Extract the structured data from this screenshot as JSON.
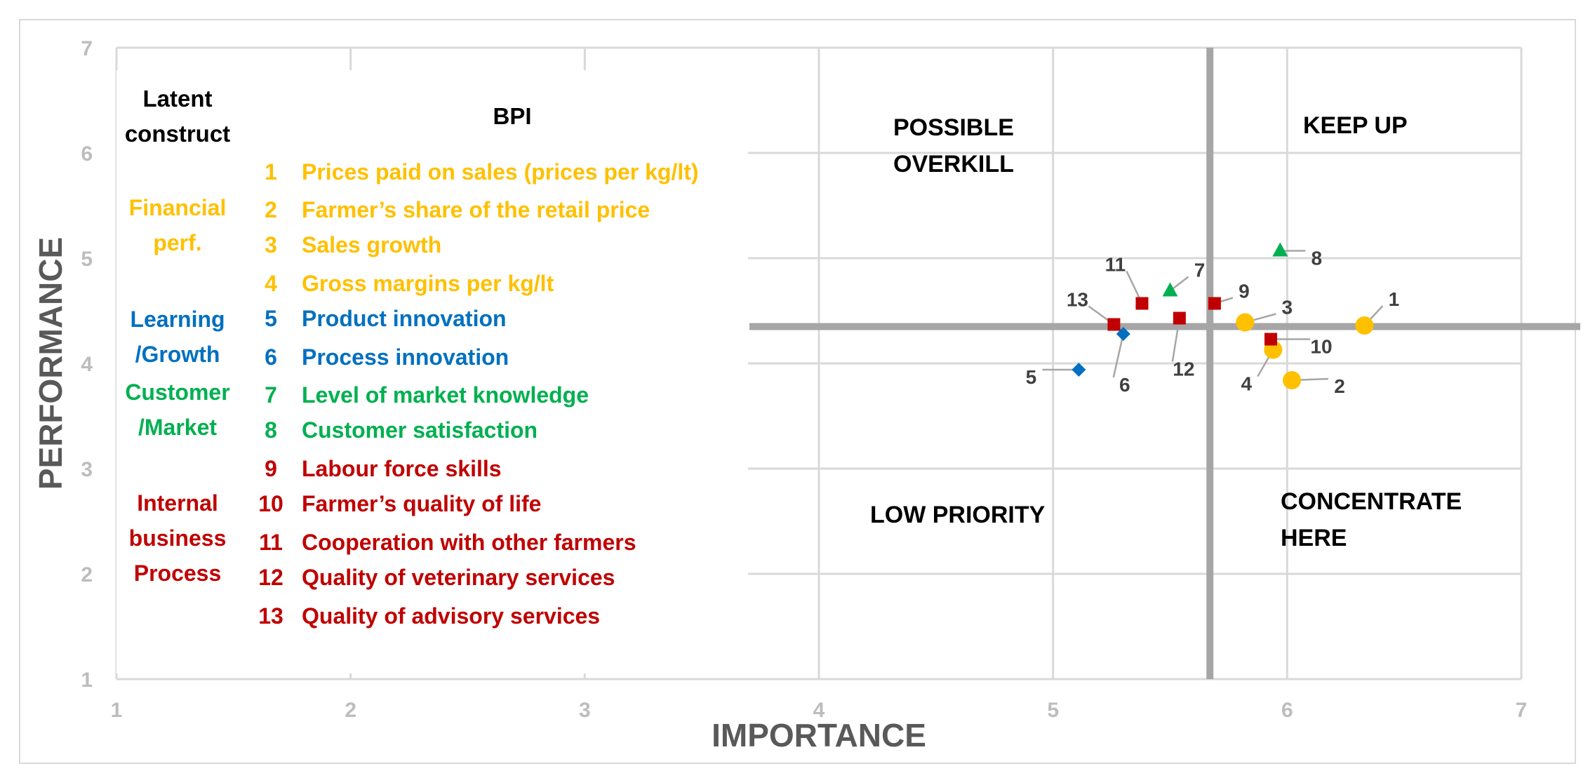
{
  "chart_data": {
    "type": "scatter",
    "title": "",
    "xlabel": "IMPORTANCE",
    "ylabel": "PERFORMANCE",
    "xlim": [
      1,
      7
    ],
    "ylim": [
      1,
      7
    ],
    "xticks": [
      "1",
      "2",
      "3",
      "4",
      "5",
      "6",
      "7"
    ],
    "yticks": [
      "1",
      "2",
      "3",
      "4",
      "5",
      "6",
      "7"
    ],
    "grid": true,
    "crosshair": {
      "x": 5.67,
      "y": 4.35
    },
    "quadrants": {
      "possible_overkill": [
        "POSSIBLE",
        "OVERKILL"
      ],
      "keep_up": "KEEP UP",
      "low_priority": "LOW  PRIORITY",
      "concentrate_here": [
        "CONCENTRATE",
        "HERE"
      ]
    },
    "legend": {
      "construct_header": [
        "Latent",
        "construct"
      ],
      "bpi_header": "BPI",
      "groups": [
        {
          "id": "financial",
          "color": "#ffc000",
          "marker": "circle",
          "name_lines": [
            "Financial",
            "perf."
          ]
        },
        {
          "id": "learning",
          "color": "#0070c0",
          "marker": "diamond",
          "name_lines": [
            "Learning",
            "/Growth"
          ]
        },
        {
          "id": "customer",
          "color": "#00b050",
          "marker": "triangle",
          "name_lines": [
            "Customer",
            "/Market"
          ]
        },
        {
          "id": "internal",
          "color": "#c00000",
          "marker": "square",
          "name_lines": [
            "Internal",
            "business",
            "Process"
          ]
        }
      ],
      "items": [
        {
          "num": "1",
          "label": "Prices paid on sales (prices per kg/lt)",
          "group": "financial"
        },
        {
          "num": "2",
          "label": "Farmer’s share of the retail price",
          "group": "financial"
        },
        {
          "num": "3",
          "label": "Sales growth",
          "group": "financial"
        },
        {
          "num": "4",
          "label": "Gross margins per kg/lt",
          "group": "financial"
        },
        {
          "num": "5",
          "label": "Product innovation",
          "group": "learning"
        },
        {
          "num": "6",
          "label": "Process innovation",
          "group": "learning"
        },
        {
          "num": "7",
          "label": "Level of market knowledge",
          "group": "customer"
        },
        {
          "num": "8",
          "label": "Customer satisfaction",
          "group": "customer"
        },
        {
          "num": "9",
          "label": "Labour force skills",
          "group": "internal"
        },
        {
          "num": "10",
          "label": "Farmer’s quality of life",
          "group": "internal"
        },
        {
          "num": "11",
          "label": "Cooperation with other farmers",
          "group": "internal"
        },
        {
          "num": "12",
          "label": "Quality of veterinary services",
          "group": "internal"
        },
        {
          "num": "13",
          "label": "Quality of advisory services",
          "group": "internal"
        }
      ]
    },
    "points": [
      {
        "label": "1",
        "x": 6.33,
        "y": 4.36,
        "group": "financial"
      },
      {
        "label": "2",
        "x": 6.02,
        "y": 3.84,
        "group": "financial"
      },
      {
        "label": "3",
        "x": 5.82,
        "y": 4.39,
        "group": "financial"
      },
      {
        "label": "4",
        "x": 5.94,
        "y": 4.13,
        "group": "financial"
      },
      {
        "label": "5",
        "x": 5.11,
        "y": 3.94,
        "group": "learning"
      },
      {
        "label": "6",
        "x": 5.3,
        "y": 4.28,
        "group": "learning"
      },
      {
        "label": "7",
        "x": 5.5,
        "y": 4.69,
        "group": "customer"
      },
      {
        "label": "8",
        "x": 5.97,
        "y": 5.07,
        "group": "customer"
      },
      {
        "label": "9",
        "x": 5.69,
        "y": 4.57,
        "group": "internal"
      },
      {
        "label": "10",
        "x": 5.93,
        "y": 4.23,
        "group": "internal"
      },
      {
        "label": "11",
        "x": 5.38,
        "y": 4.57,
        "group": "internal"
      },
      {
        "label": "12",
        "x": 5.54,
        "y": 4.43,
        "group": "internal"
      },
      {
        "label": "13",
        "x": 5.26,
        "y": 4.37,
        "group": "internal"
      }
    ]
  }
}
